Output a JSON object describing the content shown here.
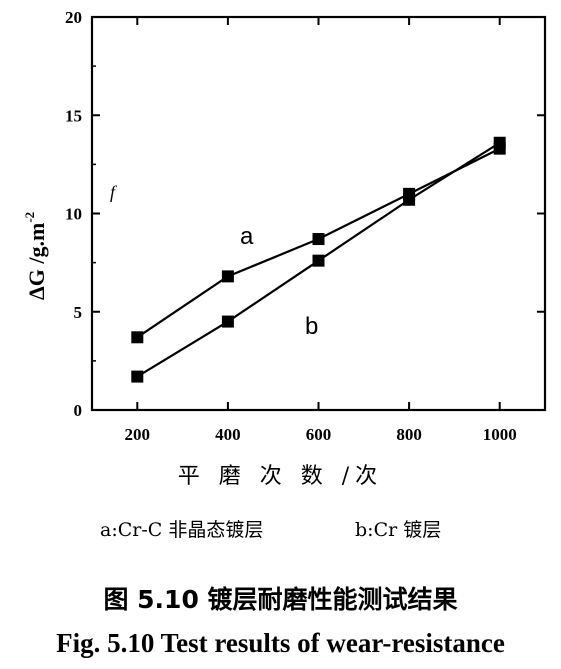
{
  "chart_data": {
    "type": "line",
    "x": [
      200,
      400,
      600,
      800,
      1000
    ],
    "series": [
      {
        "name": "a",
        "values": [
          3.7,
          6.8,
          8.7,
          11.0,
          13.3
        ]
      },
      {
        "name": "b",
        "values": [
          1.7,
          4.5,
          7.6,
          10.7,
          13.6
        ]
      }
    ],
    "xlim": [
      100,
      1100
    ],
    "ylim": [
      0,
      20
    ],
    "x_ticks": [
      200,
      400,
      600,
      800,
      1000
    ],
    "y_ticks": [
      0,
      5,
      10,
      15,
      20
    ],
    "ylabel": "ΔG /g.m",
    "ylabel_sup": "-2",
    "xlabel": "平 磨 次 数 /次",
    "grid": false,
    "line_color": "#000000",
    "marker": "square"
  },
  "legend": {
    "a": "a:Cr-C 非晶态镀层",
    "b": "b:Cr 镀层"
  },
  "caption": {
    "cn": "图 5.10 镀层耐磨性能测试结果",
    "en": "Fig. 5.10 Test results of wear-resistance"
  },
  "stray_mark": "f"
}
